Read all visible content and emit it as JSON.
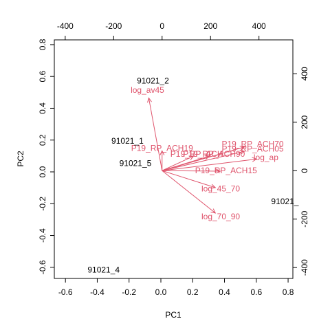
{
  "chart_data": {
    "type": "biplot",
    "title": "",
    "xlabel": "PC1",
    "ylabel": "PC2",
    "xlim": [
      -0.67,
      0.83
    ],
    "ylim": [
      -0.67,
      0.83
    ],
    "xticks": [
      "-0.6",
      "-0.4",
      "-0.2",
      "0.0",
      "0.2",
      "0.4",
      "0.6",
      "0.8"
    ],
    "yticks": [
      "-0.6",
      "-0.4",
      "-0.2",
      "0.0",
      "0.2",
      "0.4",
      "0.6",
      "0.8"
    ],
    "top_axis": {
      "lim": [
        -445,
        540
      ],
      "ticks": [
        "-400",
        "-200",
        "0",
        "200",
        "400"
      ]
    },
    "right_axis": {
      "lim": [
        -445,
        540
      ],
      "ticks": [
        "-400",
        "-200",
        "0",
        "200",
        "400"
      ]
    },
    "observations": [
      {
        "label": "91021_2",
        "x": -0.05,
        "y": 0.57
      },
      {
        "label": "91021_1",
        "x": -0.21,
        "y": 0.19
      },
      {
        "label": "91021_5",
        "x": -0.16,
        "y": 0.05
      },
      {
        "label": "91021_",
        "x": 0.78,
        "y": -0.19
      },
      {
        "label": "91021_4",
        "x": -0.36,
        "y": -0.62
      }
    ],
    "loadings": [
      {
        "label": "log_av45",
        "x": -55,
        "y": 300
      },
      {
        "label": "P19_RP_ACH19",
        "x": 0,
        "y": 82
      },
      {
        "label": "P19_RP_ACH70",
        "x": 340,
        "y": 98
      },
      {
        "label": "P19_RP_ACH05",
        "x": 340,
        "y": 80
      },
      {
        "label": "P19_RP_ACH90",
        "x": 195,
        "y": 60
      },
      {
        "label": "P19_RP_ACH",
        "x": 130,
        "y": 60
      },
      {
        "label": "log_ap",
        "x": 390,
        "y": 48
      },
      {
        "label": "P19_RP_ACH15",
        "x": 240,
        "y": -2
      },
      {
        "label": "log_45_70",
        "x": 220,
        "y": -70
      },
      {
        "label": "log_70_90",
        "x": 220,
        "y": -175
      }
    ],
    "colors": {
      "observation": "#000000",
      "loading": "#df536b",
      "axis": "#000000"
    }
  }
}
